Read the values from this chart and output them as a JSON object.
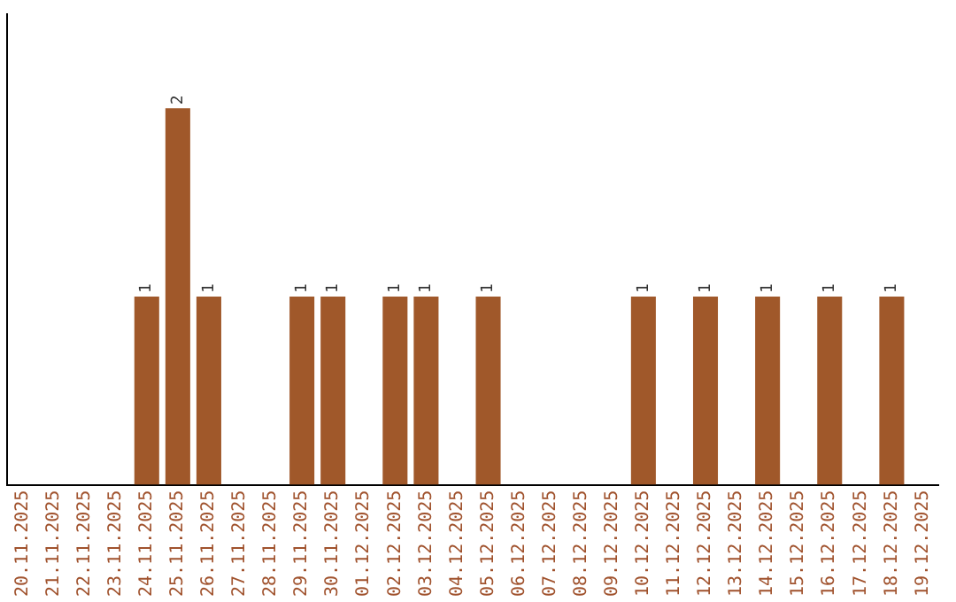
{
  "chart_data": {
    "type": "bar",
    "categories": [
      "20.11.2025",
      "21.11.2025",
      "22.11.2025",
      "23.11.2025",
      "24.11.2025",
      "25.11.2025",
      "26.11.2025",
      "27.11.2025",
      "28.11.2025",
      "29.11.2025",
      "30.11.2025",
      "01.12.2025",
      "02.12.2025",
      "03.12.2025",
      "04.12.2025",
      "05.12.2025",
      "06.12.2025",
      "07.12.2025",
      "08.12.2025",
      "09.12.2025",
      "10.12.2025",
      "11.12.2025",
      "12.12.2025",
      "13.12.2025",
      "14.12.2025",
      "15.12.2025",
      "16.12.2025",
      "17.12.2025",
      "18.12.2025",
      "19.12.2025"
    ],
    "values": [
      0,
      0,
      0,
      0,
      1,
      2,
      1,
      0,
      0,
      1,
      1,
      0,
      1,
      1,
      0,
      1,
      0,
      0,
      0,
      0,
      1,
      0,
      1,
      0,
      1,
      0,
      1,
      0,
      1,
      0
    ],
    "value_labels": [
      null,
      null,
      null,
      null,
      "1",
      "2",
      "1",
      null,
      null,
      "1",
      "1",
      null,
      "1",
      "1",
      null,
      "1",
      null,
      null,
      null,
      null,
      "1",
      null,
      "1",
      null,
      "1",
      null,
      "1",
      null,
      "1",
      null
    ],
    "color": "#a0582a",
    "grid": false,
    "legend": false,
    "tick_labels": "x"
  }
}
